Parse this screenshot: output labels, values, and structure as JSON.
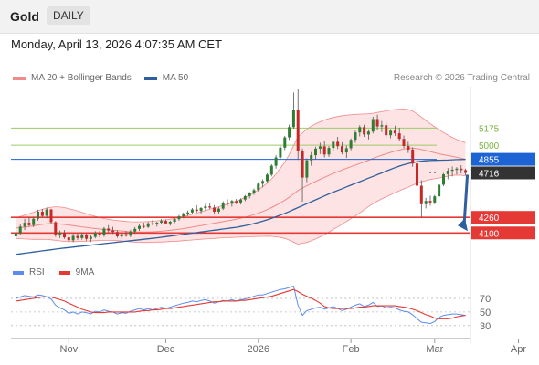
{
  "header": {
    "symbol": "Gold",
    "timeframe": "DAILY"
  },
  "datetime": "Monday, April 13, 2026 4:07:35 AM CET",
  "legend": {
    "bollinger_label": "MA 20 + Bollinger Bands",
    "ma50_label": "MA 50",
    "credit": "Research © 2026 Trading Central"
  },
  "rsi_legend": {
    "rsi_label": "RSI",
    "ma9_label": "9MA"
  },
  "colors": {
    "bollinger": "#f08b8b",
    "band_fill": "#fde3e3",
    "ma50": "#2f5f9e",
    "up": "#2e7d32",
    "down": "#c62828",
    "support": "#e53935",
    "resistance": "#9ccc65",
    "pivot": "#1e63d4",
    "price_tag": "#333333",
    "arrow": "#2f5f9e",
    "rsi": "#5b8def",
    "ma9": "#e53935"
  },
  "chart_data": {
    "type": "candlestick",
    "x_labels": [
      "Nov",
      "Dec",
      "2026",
      "Feb",
      "Mar",
      "Apr"
    ],
    "levels": [
      {
        "label": "5175",
        "value": 5175,
        "kind": "resistance"
      },
      {
        "label": "5000",
        "value": 5000,
        "kind": "resistance"
      },
      {
        "label": "4855",
        "value": 4855,
        "kind": "pivot"
      },
      {
        "label": "4716",
        "value": 4716,
        "kind": "last"
      },
      {
        "label": "4260",
        "value": 4260,
        "kind": "support"
      },
      {
        "label": "4100",
        "value": 4100,
        "kind": "support"
      }
    ],
    "ylim": [
      3850,
      5600
    ],
    "ohlc": [
      [
        4065,
        4122,
        4038,
        4100
      ],
      [
        4100,
        4188,
        4082,
        4165
      ],
      [
        4165,
        4245,
        4130,
        4205
      ],
      [
        4205,
        4262,
        4165,
        4180
      ],
      [
        4180,
        4265,
        4160,
        4245
      ],
      [
        4245,
        4338,
        4225,
        4318
      ],
      [
        4318,
        4345,
        4260,
        4275
      ],
      [
        4275,
        4360,
        4250,
        4340
      ],
      [
        4340,
        4348,
        4190,
        4210
      ],
      [
        4210,
        4222,
        4060,
        4085
      ],
      [
        4085,
        4125,
        4048,
        4102
      ],
      [
        4102,
        4130,
        4040,
        4055
      ],
      [
        4055,
        4080,
        4000,
        4025
      ],
      [
        4025,
        4092,
        4005,
        4070
      ],
      [
        4070,
        4098,
        4028,
        4048
      ],
      [
        4048,
        4105,
        4030,
        4085
      ],
      [
        4085,
        4098,
        4020,
        4040
      ],
      [
        4040,
        4075,
        4008,
        4060
      ],
      [
        4060,
        4118,
        4045,
        4100
      ],
      [
        4100,
        4122,
        4055,
        4075
      ],
      [
        4075,
        4160,
        4060,
        4145
      ],
      [
        4145,
        4180,
        4102,
        4125
      ],
      [
        4125,
        4162,
        4090,
        4110
      ],
      [
        4110,
        4128,
        4050,
        4065
      ],
      [
        4065,
        4102,
        4040,
        4088
      ],
      [
        4088,
        4120,
        4060,
        4072
      ],
      [
        4072,
        4132,
        4058,
        4115
      ],
      [
        4115,
        4160,
        4092,
        4142
      ],
      [
        4142,
        4195,
        4120,
        4172
      ],
      [
        4172,
        4205,
        4148,
        4162
      ],
      [
        4162,
        4212,
        4150,
        4198
      ],
      [
        4198,
        4232,
        4178,
        4188
      ],
      [
        4188,
        4215,
        4165,
        4205
      ],
      [
        4205,
        4245,
        4188,
        4222
      ],
      [
        4222,
        4238,
        4190,
        4198
      ],
      [
        4198,
        4225,
        4175,
        4215
      ],
      [
        4215,
        4258,
        4200,
        4242
      ],
      [
        4242,
        4285,
        4225,
        4270
      ],
      [
        4270,
        4310,
        4250,
        4295
      ],
      [
        4295,
        4330,
        4275,
        4310
      ],
      [
        4310,
        4355,
        4290,
        4340
      ],
      [
        4340,
        4385,
        4310,
        4325
      ],
      [
        4325,
        4365,
        4300,
        4355
      ],
      [
        4355,
        4398,
        4330,
        4372
      ],
      [
        4372,
        4405,
        4345,
        4360
      ],
      [
        4360,
        4385,
        4300,
        4318
      ],
      [
        4318,
        4365,
        4300,
        4350
      ],
      [
        4350,
        4425,
        4335,
        4410
      ],
      [
        4410,
        4445,
        4380,
        4400
      ],
      [
        4400,
        4438,
        4370,
        4428
      ],
      [
        4428,
        4448,
        4395,
        4412
      ],
      [
        4412,
        4455,
        4392,
        4442
      ],
      [
        4442,
        4490,
        4425,
        4478
      ],
      [
        4478,
        4520,
        4455,
        4505
      ],
      [
        4505,
        4555,
        4490,
        4540
      ],
      [
        4540,
        4620,
        4525,
        4605
      ],
      [
        4605,
        4650,
        4568,
        4632
      ],
      [
        4632,
        4712,
        4615,
        4698
      ],
      [
        4698,
        4805,
        4680,
        4790
      ],
      [
        4790,
        4898,
        4760,
        4875
      ],
      [
        4875,
        4995,
        4858,
        4975
      ],
      [
        4975,
        5095,
        4950,
        5080
      ],
      [
        5080,
        5210,
        5055,
        5185
      ],
      [
        5185,
        5540,
        5170,
        5360
      ],
      [
        5360,
        5580,
        4850,
        4940
      ],
      [
        4940,
        4965,
        4420,
        4668
      ],
      [
        4668,
        4865,
        4620,
        4845
      ],
      [
        4845,
        4930,
        4790,
        4898
      ],
      [
        4898,
        4985,
        4855,
        4965
      ],
      [
        4965,
        5025,
        4910,
        4988
      ],
      [
        4988,
        5045,
        4875,
        4905
      ],
      [
        4905,
        4992,
        4880,
        4972
      ],
      [
        4972,
        5048,
        4945,
        5035
      ],
      [
        5035,
        5085,
        4960,
        4990
      ],
      [
        4990,
        5032,
        4905,
        4925
      ],
      [
        4925,
        4995,
        4870,
        4968
      ],
      [
        4968,
        5070,
        4948,
        5055
      ],
      [
        5055,
        5148,
        5025,
        5130
      ],
      [
        5130,
        5205,
        5090,
        5185
      ],
      [
        5185,
        5210,
        5085,
        5110
      ],
      [
        5110,
        5162,
        5060,
        5140
      ],
      [
        5140,
        5292,
        5120,
        5268
      ],
      [
        5268,
        5312,
        5158,
        5192
      ],
      [
        5192,
        5248,
        5135,
        5205
      ],
      [
        5205,
        5235,
        5080,
        5102
      ],
      [
        5102,
        5165,
        5070,
        5148
      ],
      [
        5148,
        5200,
        5095,
        5122
      ],
      [
        5122,
        5178,
        5045,
        5065
      ],
      [
        5065,
        5098,
        4968,
        4992
      ],
      [
        4992,
        5035,
        4920,
        4955
      ],
      [
        4955,
        4978,
        4780,
        4812
      ],
      [
        4812,
        4830,
        4542,
        4585
      ],
      [
        4585,
        4640,
        4260,
        4395
      ],
      [
        4395,
        4460,
        4352,
        4428
      ],
      [
        4428,
        4482,
        4380,
        4412
      ],
      [
        4412,
        4490,
        4395,
        4475
      ],
      [
        4475,
        4610,
        4450,
        4595
      ],
      [
        4595,
        4715,
        4580,
        4702
      ],
      [
        4702,
        4765,
        4650,
        4738
      ],
      [
        4738,
        4782,
        4680,
        4748
      ],
      [
        4748,
        4775,
        4700,
        4760
      ],
      [
        4760,
        4795,
        4710,
        4745
      ],
      [
        4745,
        4760,
        4690,
        4716
      ]
    ],
    "ma20": [
      4150,
      4155,
      4160,
      4166,
      4173,
      4181,
      4188,
      4194,
      4197,
      4196,
      4192,
      4187,
      4181,
      4175,
      4168,
      4162,
      4156,
      4150,
      4145,
      4140,
      4136,
      4132,
      4128,
      4124,
      4120,
      4116,
      4112,
      4110,
      4109,
      4109,
      4110,
      4112,
      4115,
      4118,
      4122,
      4127,
      4132,
      4138,
      4145,
      4152,
      4160,
      4168,
      4176,
      4184,
      4192,
      4200,
      4208,
      4216,
      4224,
      4232,
      4241,
      4251,
      4262,
      4274,
      4288,
      4303,
      4320,
      4339,
      4360,
      4383,
      4408,
      4436,
      4466,
      4500,
      4535,
      4560,
      4584,
      4607,
      4629,
      4650,
      4670,
      4690,
      4710,
      4728,
      4746,
      4763,
      4779,
      4795,
      4812,
      4829,
      4846,
      4864,
      4881,
      4897,
      4911,
      4926,
      4939,
      4951,
      4962,
      4968,
      4970,
      4965,
      4956,
      4945,
      4934,
      4922,
      4911,
      4902,
      4893,
      4885,
      4876,
      4866,
      4855
    ],
    "bb_upper": [
      4255,
      4268,
      4282,
      4296,
      4312,
      4328,
      4342,
      4355,
      4364,
      4368,
      4366,
      4360,
      4350,
      4338,
      4324,
      4310,
      4296,
      4282,
      4270,
      4258,
      4248,
      4240,
      4233,
      4227,
      4222,
      4218,
      4215,
      4214,
      4214,
      4215,
      4217,
      4220,
      4224,
      4229,
      4235,
      4242,
      4250,
      4259,
      4269,
      4280,
      4292,
      4304,
      4317,
      4330,
      4343,
      4356,
      4369,
      4382,
      4396,
      4410,
      4426,
      4444,
      4464,
      4487,
      4513,
      4542,
      4575,
      4612,
      4655,
      4705,
      4762,
      4828,
      4905,
      4995,
      5085,
      5125,
      5165,
      5195,
      5220,
      5240,
      5258,
      5272,
      5284,
      5294,
      5302,
      5308,
      5312,
      5316,
      5318,
      5320,
      5322,
      5328,
      5336,
      5344,
      5352,
      5360,
      5366,
      5370,
      5372,
      5366,
      5350,
      5322,
      5288,
      5254,
      5220,
      5188,
      5158,
      5130,
      5104,
      5080,
      5058,
      5040,
      5025
    ],
    "bb_lower": [
      4045,
      4042,
      4038,
      4036,
      4034,
      4034,
      4034,
      4033,
      4030,
      4024,
      4018,
      4014,
      4012,
      4012,
      4012,
      4014,
      4016,
      4018,
      4020,
      4022,
      4024,
      4024,
      4023,
      4021,
      4018,
      4014,
      4009,
      4006,
      4004,
      4003,
      4003,
      4004,
      4006,
      4007,
      4009,
      4012,
      4014,
      4017,
      4021,
      4024,
      4028,
      4032,
      4035,
      4038,
      4041,
      4044,
      4047,
      4050,
      4052,
      4054,
      4056,
      4058,
      4060,
      4061,
      4063,
      4064,
      4065,
      4066,
      4065,
      4061,
      4054,
      4044,
      4027,
      4005,
      3985,
      3995,
      4003,
      4019,
      4038,
      4060,
      4082,
      4108,
      4136,
      4162,
      4190,
      4218,
      4246,
      4274,
      4306,
      4338,
      4370,
      4400,
      4426,
      4450,
      4470,
      4492,
      4512,
      4532,
      4552,
      4570,
      4590,
      4608,
      4624,
      4636,
      4648,
      4656,
      4664,
      4674,
      4682,
      4690,
      4694,
      4692,
      4685
    ],
    "ma50": [
      3880,
      3886,
      3892,
      3898,
      3904,
      3910,
      3916,
      3922,
      3928,
      3934,
      3940,
      3945,
      3950,
      3955,
      3960,
      3965,
      3970,
      3975,
      3980,
      3985,
      3990,
      3995,
      4000,
      4005,
      4010,
      4015,
      4020,
      4025,
      4030,
      4035,
      4040,
      4045,
      4050,
      4056,
      4062,
      4068,
      4074,
      4080,
      4086,
      4092,
      4098,
      4104,
      4110,
      4116,
      4122,
      4128,
      4134,
      4140,
      4146,
      4152,
      4158,
      4166,
      4175,
      4185,
      4196,
      4208,
      4221,
      4235,
      4250,
      4266,
      4283,
      4301,
      4320,
      4340,
      4360,
      4380,
      4400,
      4420,
      4440,
      4460,
      4480,
      4500,
      4518,
      4536,
      4554,
      4572,
      4590,
      4608,
      4626,
      4644,
      4662,
      4680,
      4698,
      4716,
      4734,
      4752,
      4770,
      4786,
      4800,
      4812,
      4822,
      4830,
      4836,
      4840,
      4843,
      4845,
      4846,
      4847,
      4848,
      4850,
      4852,
      4853,
      4855
    ],
    "rsi": [
      70,
      72,
      74,
      73,
      72,
      75,
      74,
      72,
      69,
      60,
      56,
      53,
      48,
      50,
      47,
      50,
      49,
      47,
      51,
      50,
      53,
      51,
      50,
      47,
      49,
      48,
      51,
      53,
      55,
      53,
      55,
      53,
      55,
      57,
      55,
      57,
      59,
      61,
      63,
      64,
      66,
      65,
      67,
      68,
      66,
      63,
      65,
      67,
      66,
      68,
      66,
      68,
      69,
      71,
      73,
      75,
      75,
      77,
      79,
      81,
      83,
      84,
      86,
      88,
      60,
      45,
      52,
      54,
      56,
      57,
      54,
      56,
      58,
      55,
      52,
      54,
      57,
      60,
      62,
      58,
      60,
      64,
      58,
      59,
      56,
      57,
      56,
      53,
      51,
      50,
      46,
      40,
      35,
      34,
      33,
      36,
      42,
      45,
      46,
      47,
      47,
      46,
      45
    ],
    "rsi_ma9": [
      66,
      67,
      68,
      69,
      70,
      71,
      72,
      72,
      72,
      70,
      68,
      66,
      63,
      60,
      57,
      54,
      52,
      50,
      49,
      49,
      49,
      50,
      50,
      50,
      50,
      50,
      50,
      50,
      51,
      52,
      52,
      53,
      53,
      54,
      55,
      55,
      56,
      57,
      58,
      59,
      60,
      61,
      62,
      63,
      64,
      65,
      65,
      66,
      66,
      66,
      66,
      67,
      67,
      68,
      69,
      70,
      71,
      72,
      73,
      75,
      77,
      79,
      81,
      83,
      80,
      76,
      73,
      70,
      67,
      63,
      58,
      56,
      55,
      55,
      55,
      55,
      55,
      56,
      57,
      57,
      58,
      59,
      59,
      59,
      59,
      59,
      59,
      58,
      57,
      56,
      54,
      52,
      49,
      46,
      44,
      41,
      40,
      40,
      40,
      41,
      43,
      44,
      45
    ],
    "rsi_levels": [
      70,
      50,
      30
    ],
    "rsi_ylim": [
      15,
      90
    ]
  }
}
